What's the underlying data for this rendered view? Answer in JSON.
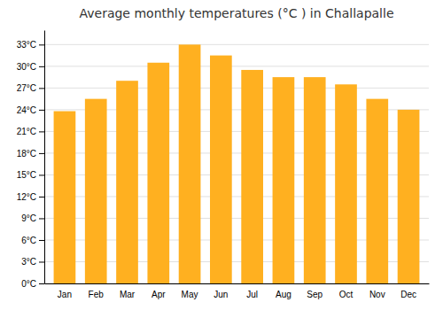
{
  "chart_data": {
    "type": "bar",
    "title": "Average monthly temperatures (°C ) in Challapalle",
    "categories": [
      "Jan",
      "Feb",
      "Mar",
      "Apr",
      "May",
      "Jun",
      "Jul",
      "Aug",
      "Sep",
      "Oct",
      "Nov",
      "Dec"
    ],
    "values": [
      23.8,
      25.5,
      28.0,
      30.5,
      33.0,
      31.5,
      29.5,
      28.5,
      28.5,
      27.5,
      25.5,
      24.0
    ],
    "color": "#FFB020",
    "ylim": [
      0,
      35
    ],
    "yticks": [
      {
        "value": 0,
        "label": "0°C"
      },
      {
        "value": 3,
        "label": "3°C"
      },
      {
        "value": 6,
        "label": "6°C"
      },
      {
        "value": 9,
        "label": "9°C"
      },
      {
        "value": 12,
        "label": "12°C"
      },
      {
        "value": 15,
        "label": "15°C"
      },
      {
        "value": 18,
        "label": "18°C"
      },
      {
        "value": 21,
        "label": "21°C"
      },
      {
        "value": 24,
        "label": "24°C"
      },
      {
        "value": 27,
        "label": "27°C"
      },
      {
        "value": 30,
        "label": "30°C"
      },
      {
        "value": 33,
        "label": "33°C"
      }
    ],
    "grid": true
  }
}
